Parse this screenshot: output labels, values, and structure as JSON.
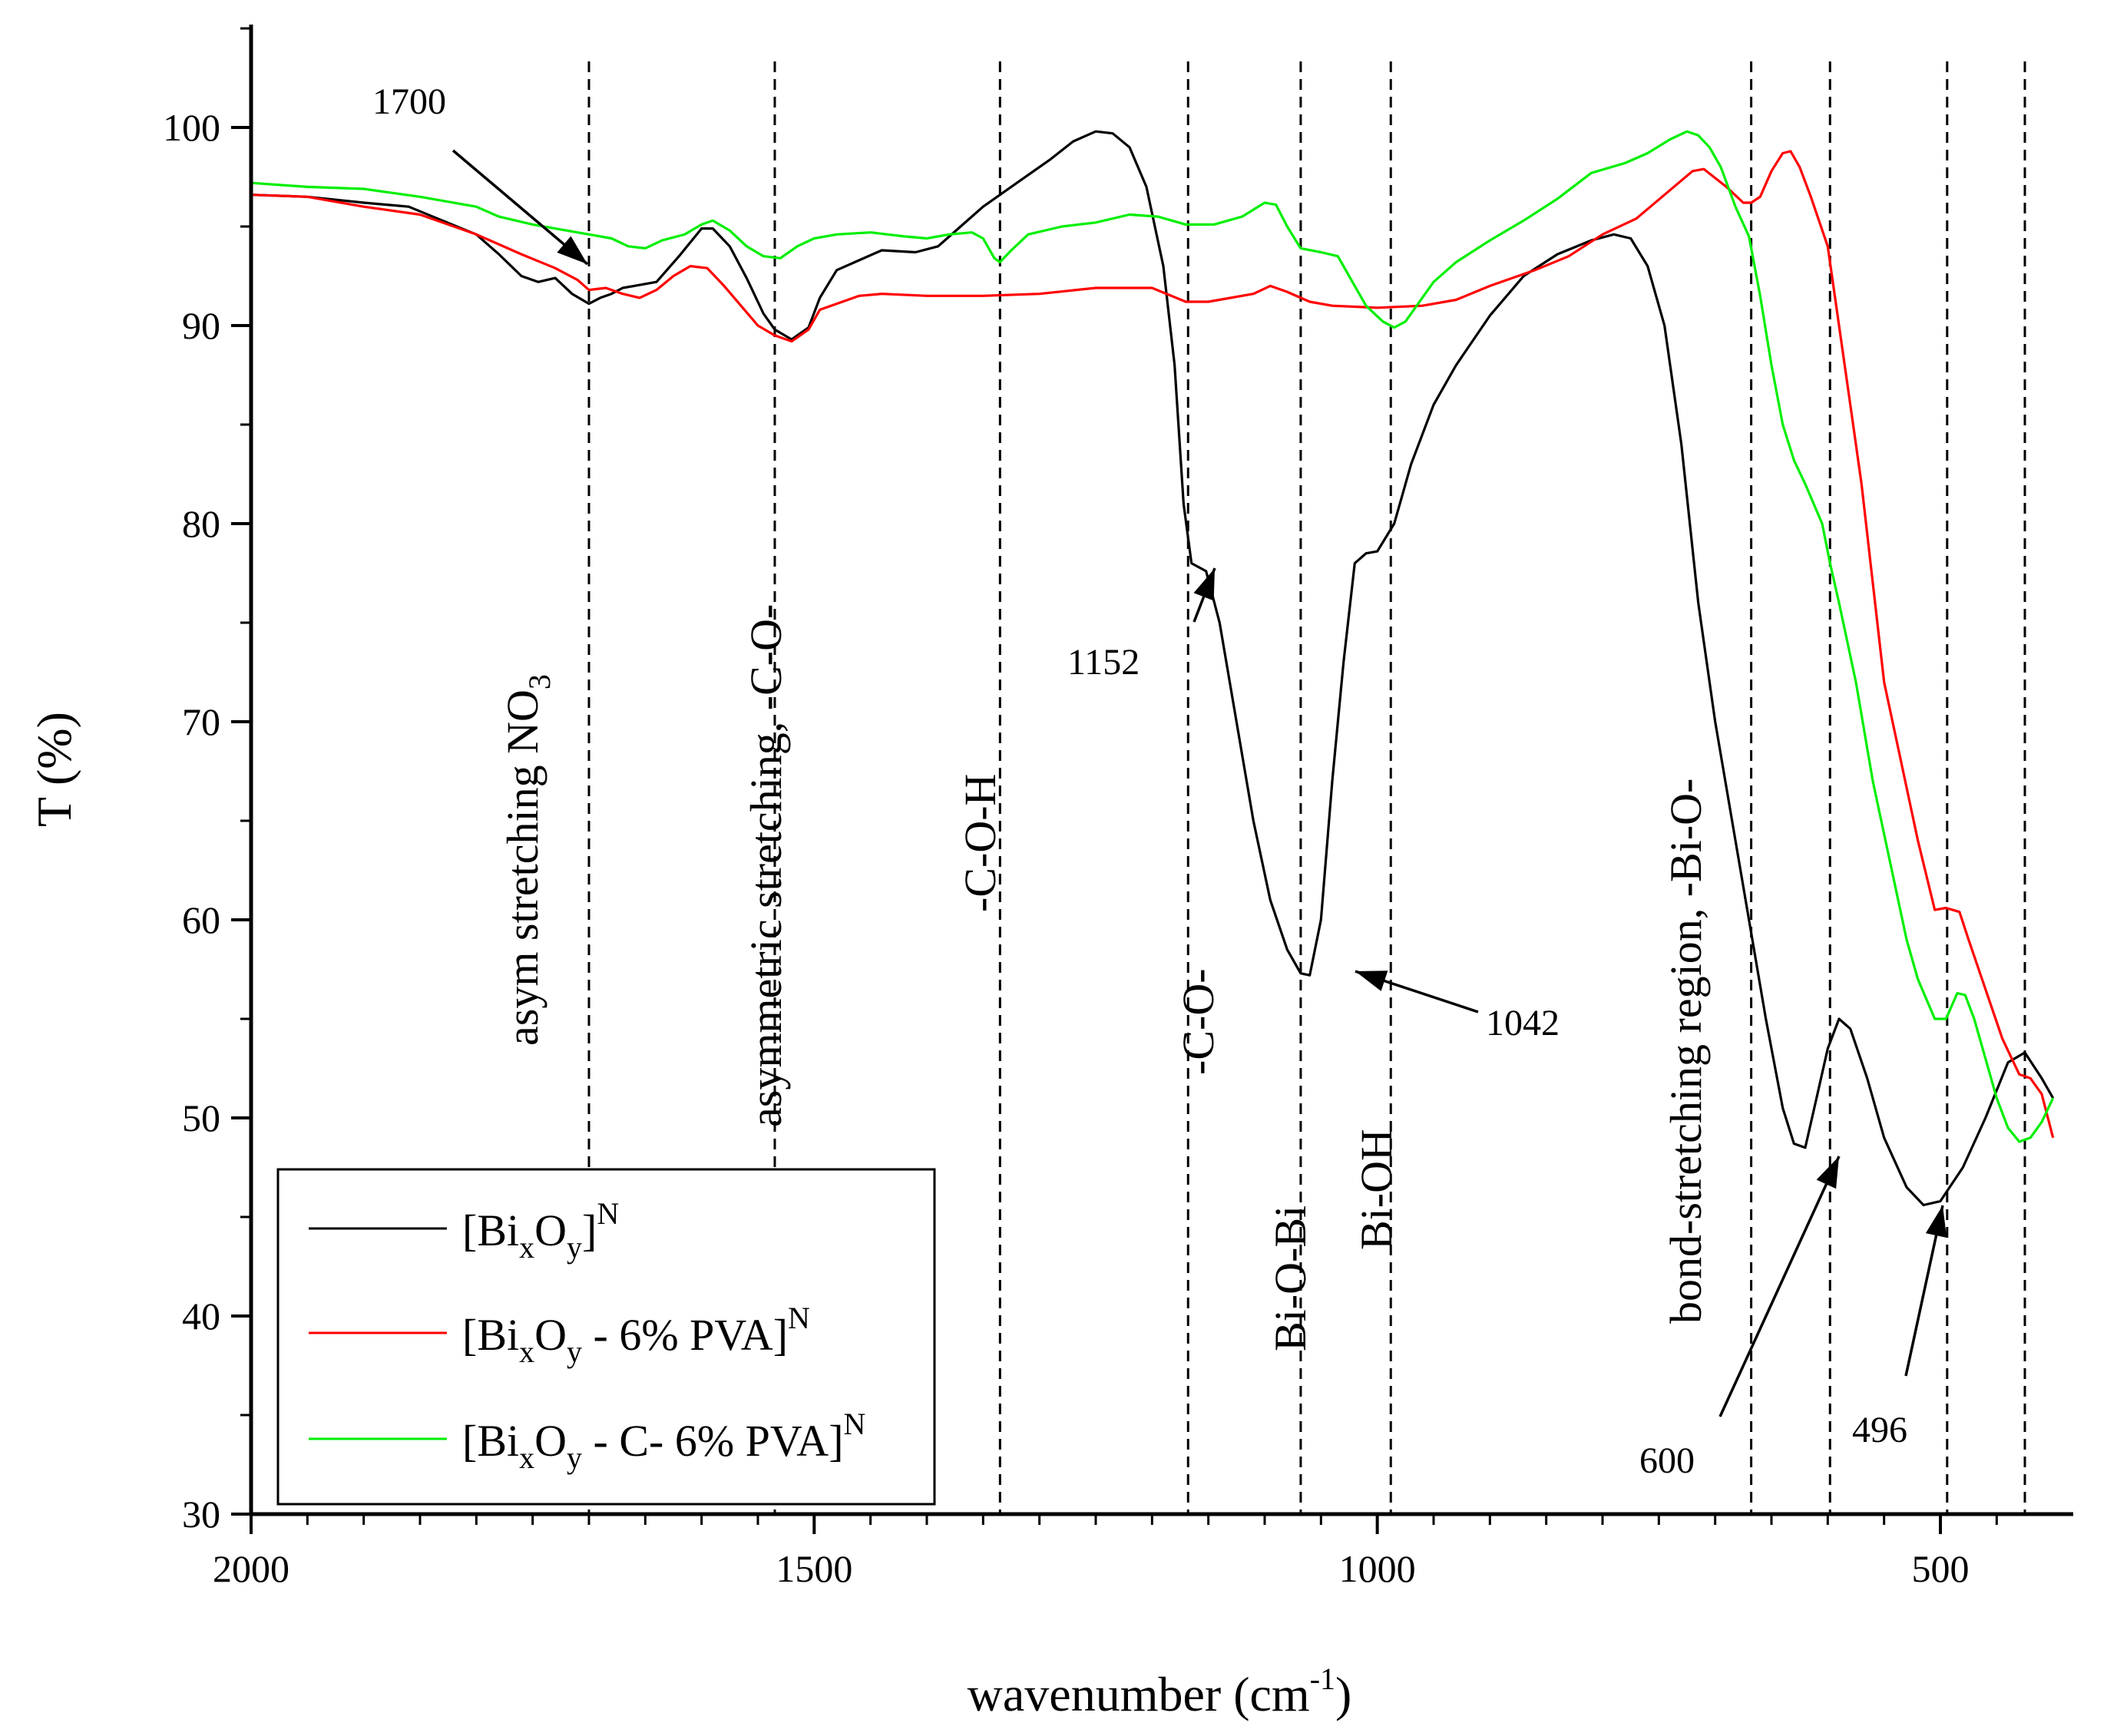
{
  "chart_data": {
    "type": "line",
    "xlabel": "wavenumber (cm",
    "xlabel_sup": "-1",
    "xlabel_end": ")",
    "ylabel": "T (%)",
    "xlim": [
      2000,
      400
    ],
    "ylim": [
      30,
      105
    ],
    "x_ticks": [
      2000,
      1500,
      1000,
      500
    ],
    "y_ticks": [
      30,
      40,
      50,
      60,
      70,
      80,
      90,
      100
    ],
    "reference_lines": [
      1700,
      1535,
      1335,
      1168,
      1068,
      988,
      668,
      598,
      494,
      425
    ],
    "series": [
      {
        "legend": {
          "pre": "[Bi",
          "s1": "x",
          "mid": "O",
          "s2": "y",
          "post": "]",
          "sup": "N"
        },
        "color": "#000000",
        "points": [
          [
            2000,
            96.6
          ],
          [
            1950,
            96.5
          ],
          [
            1900,
            96.2
          ],
          [
            1860,
            96
          ],
          [
            1830,
            95.3
          ],
          [
            1800,
            94.6
          ],
          [
            1780,
            93.6
          ],
          [
            1760,
            92.5
          ],
          [
            1745,
            92.2
          ],
          [
            1730,
            92.4
          ],
          [
            1715,
            91.6
          ],
          [
            1700,
            91.1
          ],
          [
            1690,
            91.4
          ],
          [
            1680,
            91.6
          ],
          [
            1670,
            91.9
          ],
          [
            1660,
            92
          ],
          [
            1640,
            92.2
          ],
          [
            1620,
            93.5
          ],
          [
            1600,
            94.9
          ],
          [
            1590,
            94.9
          ],
          [
            1575,
            94
          ],
          [
            1560,
            92.4
          ],
          [
            1545,
            90.6
          ],
          [
            1535,
            89.8
          ],
          [
            1520,
            89.3
          ],
          [
            1505,
            89.9
          ],
          [
            1495,
            91.4
          ],
          [
            1480,
            92.8
          ],
          [
            1460,
            93.3
          ],
          [
            1440,
            93.8
          ],
          [
            1410,
            93.7
          ],
          [
            1390,
            94
          ],
          [
            1370,
            95
          ],
          [
            1350,
            96
          ],
          [
            1320,
            97.2
          ],
          [
            1290,
            98.4
          ],
          [
            1270,
            99.3
          ],
          [
            1250,
            99.8
          ],
          [
            1235,
            99.7
          ],
          [
            1220,
            99
          ],
          [
            1205,
            97
          ],
          [
            1190,
            93
          ],
          [
            1180,
            88
          ],
          [
            1172,
            81
          ],
          [
            1165,
            78
          ],
          [
            1152,
            77.6
          ],
          [
            1140,
            75
          ],
          [
            1125,
            70
          ],
          [
            1110,
            65
          ],
          [
            1095,
            61
          ],
          [
            1080,
            58.5
          ],
          [
            1068,
            57.3
          ],
          [
            1060,
            57.2
          ],
          [
            1050,
            60
          ],
          [
            1040,
            67
          ],
          [
            1030,
            73
          ],
          [
            1020,
            78
          ],
          [
            1010,
            78.5
          ],
          [
            1000,
            78.6
          ],
          [
            985,
            80
          ],
          [
            970,
            83
          ],
          [
            950,
            86
          ],
          [
            930,
            88
          ],
          [
            900,
            90.5
          ],
          [
            870,
            92.5
          ],
          [
            840,
            93.6
          ],
          [
            810,
            94.3
          ],
          [
            790,
            94.6
          ],
          [
            775,
            94.4
          ],
          [
            760,
            93
          ],
          [
            745,
            90
          ],
          [
            730,
            84
          ],
          [
            715,
            76
          ],
          [
            700,
            70
          ],
          [
            685,
            65
          ],
          [
            670,
            60
          ],
          [
            655,
            55
          ],
          [
            640,
            50.5
          ],
          [
            630,
            48.7
          ],
          [
            620,
            48.5
          ],
          [
            610,
            51
          ],
          [
            600,
            53.5
          ],
          [
            590,
            55
          ],
          [
            580,
            54.5
          ],
          [
            565,
            52
          ],
          [
            550,
            49
          ],
          [
            530,
            46.5
          ],
          [
            515,
            45.6
          ],
          [
            500,
            45.8
          ],
          [
            480,
            47.5
          ],
          [
            460,
            50
          ],
          [
            440,
            52.8
          ],
          [
            425,
            53.3
          ],
          [
            410,
            52
          ],
          [
            400,
            51
          ]
        ]
      },
      {
        "legend": {
          "pre": "[Bi",
          "s1": "x",
          "mid": "O",
          "s2": "y",
          "post": " - 6% PVA]",
          "sup": "N"
        },
        "color": "#ff0000",
        "points": [
          [
            2000,
            96.6
          ],
          [
            1950,
            96.5
          ],
          [
            1900,
            96
          ],
          [
            1850,
            95.6
          ],
          [
            1800,
            94.6
          ],
          [
            1760,
            93.6
          ],
          [
            1730,
            92.9
          ],
          [
            1710,
            92.3
          ],
          [
            1700,
            91.8
          ],
          [
            1685,
            91.9
          ],
          [
            1670,
            91.6
          ],
          [
            1655,
            91.4
          ],
          [
            1640,
            91.8
          ],
          [
            1625,
            92.5
          ],
          [
            1610,
            93
          ],
          [
            1595,
            92.9
          ],
          [
            1580,
            92
          ],
          [
            1565,
            91
          ],
          [
            1550,
            90
          ],
          [
            1535,
            89.5
          ],
          [
            1520,
            89.2
          ],
          [
            1505,
            89.8
          ],
          [
            1495,
            90.8
          ],
          [
            1480,
            91.1
          ],
          [
            1460,
            91.5
          ],
          [
            1440,
            91.6
          ],
          [
            1400,
            91.5
          ],
          [
            1350,
            91.5
          ],
          [
            1300,
            91.6
          ],
          [
            1250,
            91.9
          ],
          [
            1200,
            91.9
          ],
          [
            1170,
            91.2
          ],
          [
            1150,
            91.2
          ],
          [
            1110,
            91.6
          ],
          [
            1095,
            92
          ],
          [
            1080,
            91.7
          ],
          [
            1060,
            91.2
          ],
          [
            1040,
            91
          ],
          [
            1000,
            90.9
          ],
          [
            960,
            91
          ],
          [
            930,
            91.3
          ],
          [
            900,
            92
          ],
          [
            860,
            92.8
          ],
          [
            830,
            93.5
          ],
          [
            800,
            94.6
          ],
          [
            770,
            95.4
          ],
          [
            745,
            96.6
          ],
          [
            720,
            97.8
          ],
          [
            710,
            97.9
          ],
          [
            690,
            97
          ],
          [
            675,
            96.2
          ],
          [
            668,
            96.2
          ],
          [
            660,
            96.5
          ],
          [
            650,
            97.8
          ],
          [
            640,
            98.7
          ],
          [
            633,
            98.8
          ],
          [
            625,
            98
          ],
          [
            615,
            96.5
          ],
          [
            600,
            94
          ],
          [
            590,
            90
          ],
          [
            580,
            86
          ],
          [
            570,
            82
          ],
          [
            560,
            77
          ],
          [
            550,
            72
          ],
          [
            535,
            68
          ],
          [
            520,
            64
          ],
          [
            505,
            60.5
          ],
          [
            495,
            60.6
          ],
          [
            483,
            60.4
          ],
          [
            475,
            59
          ],
          [
            460,
            56.5
          ],
          [
            445,
            54
          ],
          [
            430,
            52.2
          ],
          [
            420,
            52
          ],
          [
            410,
            51.2
          ],
          [
            400,
            49
          ]
        ]
      },
      {
        "legend": {
          "pre": "[Bi",
          "s1": "x",
          "mid": "O",
          "s2": "y",
          "post": " - C- 6% PVA]",
          "sup": "N"
        },
        "color": "#00ee00",
        "points": [
          [
            2000,
            97.2
          ],
          [
            1950,
            97
          ],
          [
            1900,
            96.9
          ],
          [
            1850,
            96.5
          ],
          [
            1800,
            96
          ],
          [
            1780,
            95.5
          ],
          [
            1750,
            95.1
          ],
          [
            1720,
            94.8
          ],
          [
            1700,
            94.6
          ],
          [
            1680,
            94.4
          ],
          [
            1665,
            94
          ],
          [
            1650,
            93.9
          ],
          [
            1635,
            94.3
          ],
          [
            1615,
            94.6
          ],
          [
            1600,
            95.1
          ],
          [
            1590,
            95.3
          ],
          [
            1575,
            94.8
          ],
          [
            1560,
            94
          ],
          [
            1545,
            93.5
          ],
          [
            1530,
            93.4
          ],
          [
            1515,
            94
          ],
          [
            1500,
            94.4
          ],
          [
            1480,
            94.6
          ],
          [
            1450,
            94.7
          ],
          [
            1420,
            94.5
          ],
          [
            1400,
            94.4
          ],
          [
            1380,
            94.6
          ],
          [
            1360,
            94.7
          ],
          [
            1350,
            94.4
          ],
          [
            1340,
            93.4
          ],
          [
            1335,
            93.2
          ],
          [
            1325,
            93.8
          ],
          [
            1310,
            94.6
          ],
          [
            1280,
            95
          ],
          [
            1250,
            95.2
          ],
          [
            1220,
            95.6
          ],
          [
            1195,
            95.5
          ],
          [
            1170,
            95.1
          ],
          [
            1145,
            95.1
          ],
          [
            1120,
            95.5
          ],
          [
            1100,
            96.2
          ],
          [
            1090,
            96.1
          ],
          [
            1080,
            95
          ],
          [
            1068,
            93.9
          ],
          [
            1050,
            93.7
          ],
          [
            1035,
            93.5
          ],
          [
            1020,
            92
          ],
          [
            1010,
            91
          ],
          [
            995,
            90.2
          ],
          [
            985,
            89.9
          ],
          [
            975,
            90.2
          ],
          [
            965,
            91
          ],
          [
            950,
            92.2
          ],
          [
            930,
            93.2
          ],
          [
            900,
            94.3
          ],
          [
            870,
            95.3
          ],
          [
            840,
            96.4
          ],
          [
            810,
            97.7
          ],
          [
            780,
            98.2
          ],
          [
            760,
            98.7
          ],
          [
            740,
            99.4
          ],
          [
            725,
            99.8
          ],
          [
            715,
            99.6
          ],
          [
            705,
            99
          ],
          [
            695,
            98
          ],
          [
            682,
            96
          ],
          [
            670,
            94.5
          ],
          [
            660,
            91.5
          ],
          [
            650,
            88
          ],
          [
            640,
            85
          ],
          [
            630,
            83.2
          ],
          [
            620,
            82
          ],
          [
            605,
            80
          ],
          [
            598,
            78
          ],
          [
            590,
            76
          ],
          [
            575,
            72
          ],
          [
            560,
            67
          ],
          [
            545,
            63
          ],
          [
            530,
            59
          ],
          [
            520,
            57
          ],
          [
            505,
            55
          ],
          [
            495,
            55
          ],
          [
            485,
            56.3
          ],
          [
            478,
            56.2
          ],
          [
            470,
            55
          ],
          [
            460,
            53
          ],
          [
            450,
            51
          ],
          [
            440,
            49.5
          ],
          [
            430,
            48.8
          ],
          [
            420,
            49
          ],
          [
            410,
            49.8
          ],
          [
            400,
            51
          ]
        ]
      }
    ],
    "annotations": {
      "a1700": "1700",
      "a1152": "1152",
      "a1042": "1042",
      "a600": "600",
      "a496": "496",
      "asym": "asym stretching  NO",
      "asym_sub": "3",
      "asym_co": "asymmetric stretching, -C-O-",
      "coh": "-C-O-H",
      "co": "-C-O-",
      "biobi": "Bi-O-Bi",
      "bioh": "Bi-OH",
      "bond": "bond-stretching region, -Bi-O-"
    }
  }
}
